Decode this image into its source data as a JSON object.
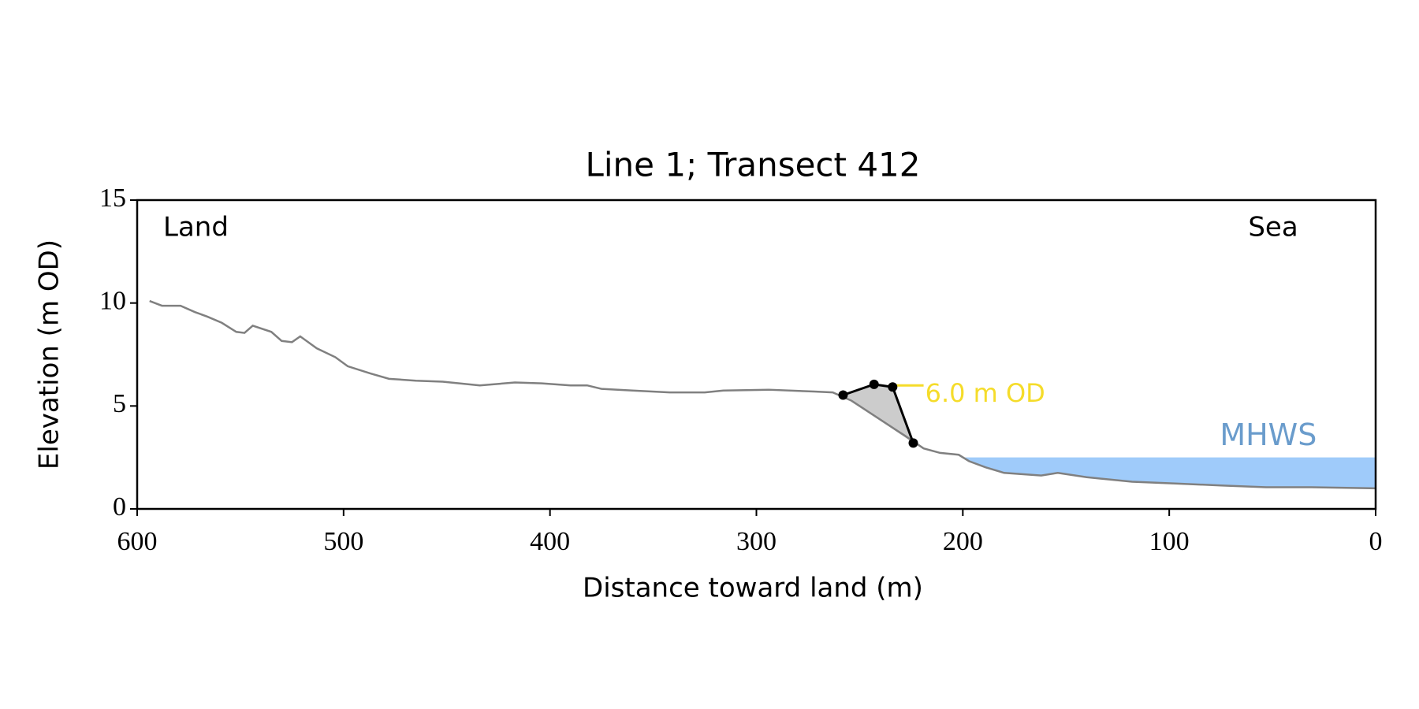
{
  "chart_data": {
    "type": "line",
    "title": "Line 1; Transect 412",
    "xlabel": "Distance toward land (m)",
    "ylabel": "Elevation (m OD)",
    "xlim": [
      600,
      0
    ],
    "ylim": [
      0,
      15
    ],
    "xticks": [
      600,
      500,
      400,
      300,
      200,
      100,
      0
    ],
    "yticks": [
      0,
      5,
      10,
      15
    ],
    "corner_labels": {
      "left": "Land",
      "right": "Sea"
    },
    "profile": {
      "color": "#808080",
      "x": [
        594,
        588,
        579,
        572,
        566,
        559,
        552,
        548,
        544,
        535,
        530,
        525,
        521,
        513,
        504,
        498,
        487,
        478,
        465,
        452,
        434,
        417,
        404,
        390,
        382,
        375,
        360,
        342,
        325,
        316,
        294,
        272,
        263,
        254,
        228,
        219,
        211,
        202,
        197,
        189,
        180,
        162,
        154,
        140,
        118,
        96,
        75,
        53,
        31,
        0
      ],
      "y": [
        10.1,
        9.87,
        9.87,
        9.56,
        9.34,
        9.04,
        8.6,
        8.55,
        8.9,
        8.6,
        8.16,
        8.1,
        8.38,
        7.8,
        7.37,
        6.93,
        6.58,
        6.32,
        6.23,
        6.18,
        6.0,
        6.14,
        6.1,
        6.0,
        6.0,
        5.83,
        5.75,
        5.66,
        5.66,
        5.75,
        5.79,
        5.7,
        5.66,
        5.26,
        3.55,
        2.94,
        2.72,
        2.63,
        2.32,
        2.02,
        1.75,
        1.62,
        1.75,
        1.54,
        1.32,
        1.23,
        1.14,
        1.05,
        1.05,
        1.0
      ]
    },
    "dune": {
      "color": "#000000",
      "fill": "#cccccc",
      "x": [
        258,
        243,
        234,
        224
      ],
      "y": [
        5.53,
        6.05,
        5.92,
        3.2
      ]
    },
    "crest_line": {
      "label": "6.0 m OD",
      "value": 6.0,
      "x": [
        236,
        219
      ],
      "color": "#f5dc2a"
    },
    "mhws": {
      "label": "MHWS",
      "value": 2.5,
      "x": [
        200,
        0
      ],
      "color": "#9fcbfa",
      "label_color": "#6a9ccc"
    }
  }
}
